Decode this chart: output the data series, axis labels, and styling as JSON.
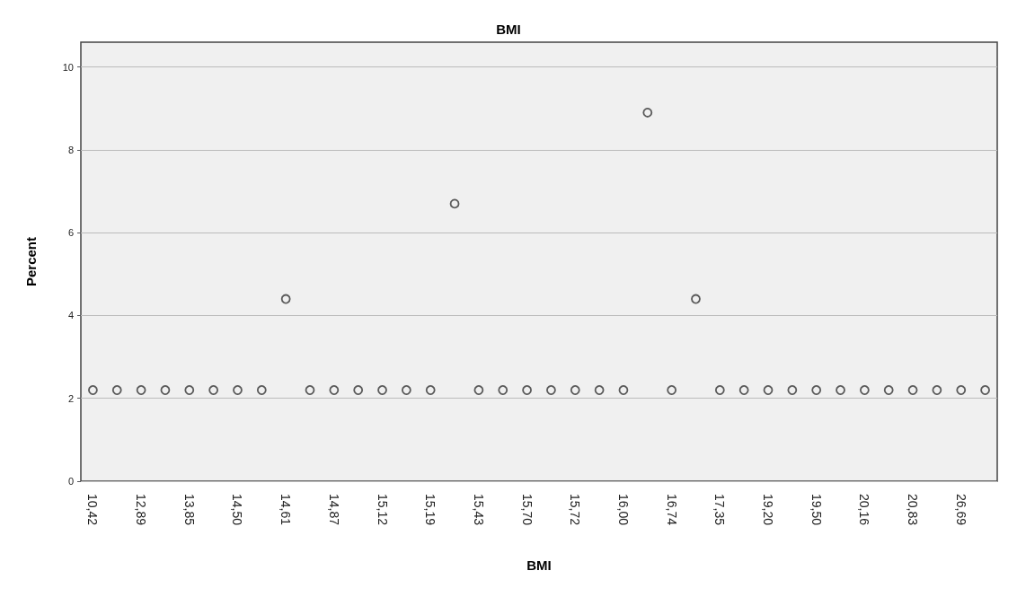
{
  "chart_data": {
    "type": "scatter",
    "title": "BMI",
    "xlabel": "BMI",
    "ylabel": "Percent",
    "categories": [
      "10,42",
      null,
      "12,89",
      null,
      "13,85",
      null,
      "14,50",
      null,
      "14,61",
      null,
      "14,87",
      null,
      "15,12",
      null,
      "15,19",
      null,
      "15,43",
      null,
      "15,70",
      null,
      "15,72",
      null,
      "16,00",
      null,
      "16,74",
      null,
      "17,35",
      null,
      "19,20",
      null,
      "19,50",
      null,
      "20,16",
      null,
      "20,83",
      null,
      "26,69",
      null
    ],
    "values": [
      2.2,
      2.2,
      2.2,
      2.2,
      2.2,
      2.2,
      2.2,
      2.2,
      4.4,
      2.2,
      2.2,
      2.2,
      2.2,
      2.2,
      2.2,
      6.7,
      2.2,
      2.2,
      2.2,
      2.2,
      2.2,
      2.2,
      2.2,
      8.9,
      2.2,
      4.4,
      2.2,
      2.2,
      2.2,
      2.2,
      2.2,
      2.2,
      2.2,
      2.2,
      2.2,
      2.2,
      2.2,
      2.2
    ],
    "color": "#333333",
    "marker": "circle",
    "grid": "y",
    "ylim": [
      0,
      10.6
    ],
    "yticks": [
      0,
      2,
      4,
      6,
      8,
      10
    ]
  }
}
